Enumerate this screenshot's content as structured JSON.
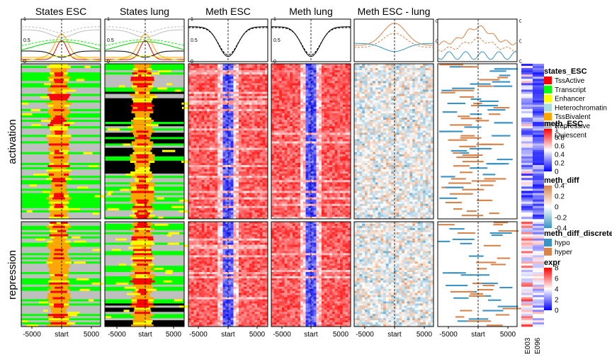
{
  "figure": {
    "row_labels": [
      "activation",
      "repression"
    ],
    "x_ticks": [
      "-5000",
      "start",
      "5000"
    ],
    "expr_columns": [
      "E003",
      "E096"
    ]
  },
  "chart_data": [
    {
      "type": "heatmap",
      "title": "States ESC",
      "kind": "states",
      "profile_ticks": [
        "0",
        "0.5",
        "1"
      ],
      "profile_tick_values": [
        0,
        0.5,
        1
      ],
      "profile_tick_side": "left"
    },
    {
      "type": "heatmap",
      "title": "States lung",
      "kind": "states",
      "profile_ticks": [
        "0",
        "0.5",
        "1"
      ],
      "profile_tick_values": [
        0,
        0.5,
        1
      ],
      "profile_tick_side": "left"
    },
    {
      "type": "heatmap",
      "title": "Meth ESC",
      "kind": "meth",
      "profile_ticks": [
        "0",
        "0.5",
        "1"
      ],
      "profile_tick_values": [
        0,
        0.5,
        1
      ],
      "profile_tick_side": "left"
    },
    {
      "type": "heatmap",
      "title": "Meth lung",
      "kind": "meth",
      "profile_ticks": [
        "0",
        "0.5",
        "1"
      ],
      "profile_tick_values": [
        0,
        0.5,
        1
      ],
      "profile_tick_side": "left"
    },
    {
      "type": "heatmap",
      "title": "Meth ESC - lung",
      "kind": "diff",
      "profile_ticks": [
        "0.05",
        "0.1"
      ],
      "profile_tick_values": [
        0.05,
        0.1
      ],
      "profile_ylim": [
        0,
        0.105
      ],
      "profile_tick_side": "right"
    },
    {
      "type": "heatmap",
      "title": "",
      "kind": "discrete",
      "profile_ticks": [
        "0",
        "0.1",
        "0.2"
      ],
      "profile_tick_values": [
        0,
        0.1,
        0.2
      ],
      "profile_ylim": [
        0,
        0.21
      ],
      "profile_tick_side": "right"
    }
  ],
  "legends": {
    "states_ESC": {
      "title": "states_ESC",
      "items": [
        {
          "label": "TssActive",
          "color": "#ff0000"
        },
        {
          "label": "Transcript",
          "color": "#00ff00"
        },
        {
          "label": "Enhancer",
          "color": "#ffff00"
        },
        {
          "label": "Heterochromatin",
          "color": "#aadddd"
        },
        {
          "label": "TssBivalent",
          "color": "#ffa500"
        },
        {
          "label": "Repressive",
          "color": "#bebebe"
        },
        {
          "label": "Quiescent",
          "color": "#000000"
        }
      ]
    },
    "meth_ESC": {
      "title": "meth_ESC",
      "ticks": [
        "1",
        "0.8",
        "0.6",
        "0.4",
        "0.2",
        "0"
      ],
      "colors": [
        "#ff0000",
        "#ffffff",
        "#0000ff"
      ]
    },
    "meth_diff": {
      "title": "meth_diff",
      "ticks": [
        "0.4",
        "0.2",
        "0",
        "-0.2",
        "-0.4"
      ],
      "colors": [
        "#d8834a",
        "#ffffff",
        "#3a93c3"
      ]
    },
    "meth_diff_discrete": {
      "title": "meth_diff_discrete",
      "items": [
        {
          "label": "hypo",
          "color": "#3a93c3"
        },
        {
          "label": "hyper",
          "color": "#d8834a"
        }
      ]
    },
    "expr": {
      "title": "expr",
      "ticks": [
        "8",
        "6",
        "4",
        "2",
        "0"
      ],
      "colors": [
        "#ff0000",
        "#ffffff",
        "#0000ff"
      ]
    }
  }
}
